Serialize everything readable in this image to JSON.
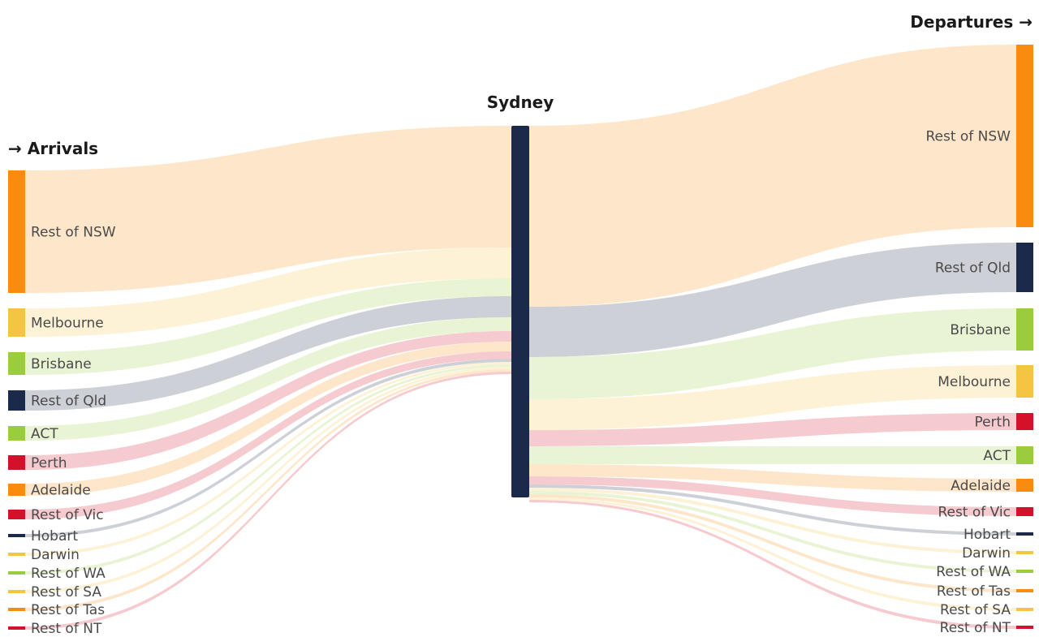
{
  "headers": {
    "arrivals": "→ Arrivals",
    "hub": "Sydney",
    "departures": "Departures →"
  },
  "colors": {
    "hub": "#1b2a4a",
    "orange": "#f98c0f",
    "amber": "#f6c443",
    "green": "#9acd3d",
    "navy": "#1b2a4a",
    "red": "#d5102a"
  },
  "arrivals": [
    {
      "label": "Rest of NSW",
      "color": "orange"
    },
    {
      "label": "Melbourne",
      "color": "amber"
    },
    {
      "label": "Brisbane",
      "color": "green"
    },
    {
      "label": "Rest of Qld",
      "color": "navy"
    },
    {
      "label": "ACT",
      "color": "green"
    },
    {
      "label": "Perth",
      "color": "red"
    },
    {
      "label": "Adelaide",
      "color": "orange"
    },
    {
      "label": "Rest of Vic",
      "color": "red"
    },
    {
      "label": "Hobart",
      "color": "navy"
    },
    {
      "label": "Darwin",
      "color": "amber"
    },
    {
      "label": "Rest of WA",
      "color": "green"
    },
    {
      "label": "Rest of SA",
      "color": "amber"
    },
    {
      "label": "Rest of Tas",
      "color": "orange"
    },
    {
      "label": "Rest of NT",
      "color": "red"
    }
  ],
  "departures": [
    {
      "label": "Rest of NSW",
      "color": "orange"
    },
    {
      "label": "Rest of Qld",
      "color": "navy"
    },
    {
      "label": "Brisbane",
      "color": "green"
    },
    {
      "label": "Melbourne",
      "color": "amber"
    },
    {
      "label": "Perth",
      "color": "red"
    },
    {
      "label": "ACT",
      "color": "green"
    },
    {
      "label": "Adelaide",
      "color": "orange"
    },
    {
      "label": "Rest of Vic",
      "color": "red"
    },
    {
      "label": "Hobart",
      "color": "navy"
    },
    {
      "label": "Darwin",
      "color": "amber"
    },
    {
      "label": "Rest of WA",
      "color": "green"
    },
    {
      "label": "Rest of Tas",
      "color": "orange"
    },
    {
      "label": "Rest of SA",
      "color": "amber"
    },
    {
      "label": "Rest of NT",
      "color": "red"
    }
  ]
}
